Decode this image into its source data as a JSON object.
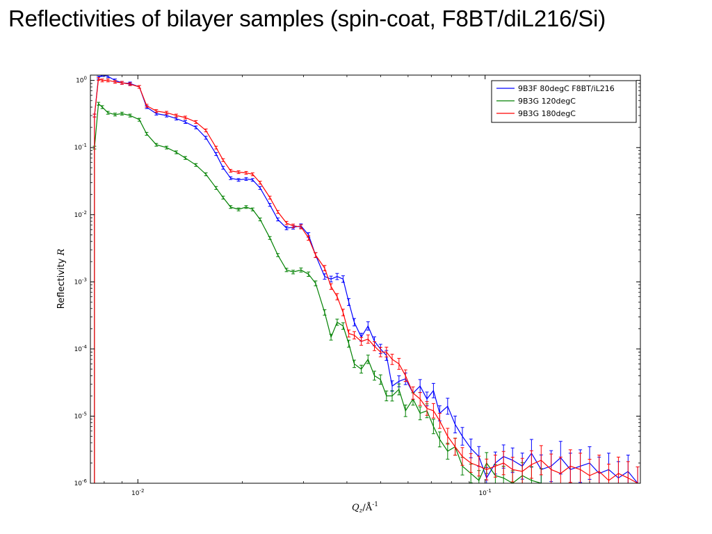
{
  "slide": {
    "title": "Reflectivities of bilayer samples  (spin-coat, F8BT/diL216/Si)"
  },
  "chart_data": {
    "type": "line",
    "xscale": "log",
    "yscale": "log",
    "xlim": [
      0.0073,
      0.28
    ],
    "ylim": [
      1e-06,
      1.2
    ],
    "grid": false,
    "legend_position": "top-right",
    "xlabel": "Q_z/Å^-1",
    "ylabel": "Reflectivity R",
    "x_ticks": [
      {
        "value": 0.01,
        "base": "10",
        "exp": "-2"
      },
      {
        "value": 0.1,
        "base": "10",
        "exp": "-1"
      }
    ],
    "y_ticks": [
      {
        "value": 1,
        "base": "10",
        "exp": "0"
      },
      {
        "value": 0.1,
        "base": "10",
        "exp": "-1"
      },
      {
        "value": 0.01,
        "base": "10",
        "exp": "-2"
      },
      {
        "value": 0.001,
        "base": "10",
        "exp": "-3"
      },
      {
        "value": 0.0001,
        "base": "10",
        "exp": "-4"
      },
      {
        "value": 1e-05,
        "base": "10",
        "exp": "-5"
      },
      {
        "value": 1e-06,
        "base": "10",
        "exp": "-6"
      }
    ],
    "series": [
      {
        "name": "9B3F  80degC F8BT/iL216",
        "color": "#0000ff",
        "x": [
          0.0075,
          0.0077,
          0.0079,
          0.0082,
          0.0086,
          0.009,
          0.0095,
          0.0101,
          0.0106,
          0.0113,
          0.0121,
          0.0129,
          0.0137,
          0.0147,
          0.0157,
          0.0168,
          0.0176,
          0.0185,
          0.0195,
          0.0205,
          0.0214,
          0.0225,
          0.024,
          0.0253,
          0.0268,
          0.028,
          0.0295,
          0.031,
          0.0325,
          0.0345,
          0.036,
          0.0375,
          0.039,
          0.0405,
          0.042,
          0.044,
          0.046,
          0.048,
          0.05,
          0.052,
          0.054,
          0.0565,
          0.059,
          0.062,
          0.065,
          0.068,
          0.071,
          0.074,
          0.078,
          0.082,
          0.086,
          0.091,
          0.096,
          0.101,
          0.107,
          0.113,
          0.12,
          0.128,
          0.136,
          0.145,
          0.155,
          0.165,
          0.176,
          0.188,
          0.2,
          0.213,
          0.227,
          0.242,
          0.258,
          0.275
        ],
        "y": [
          0.3,
          1.1,
          1.2,
          1.15,
          1.0,
          0.92,
          0.9,
          0.8,
          0.4,
          0.32,
          0.3,
          0.27,
          0.24,
          0.2,
          0.14,
          0.08,
          0.05,
          0.035,
          0.033,
          0.034,
          0.033,
          0.025,
          0.014,
          0.0085,
          0.0063,
          0.0065,
          0.0068,
          0.005,
          0.0025,
          0.0012,
          0.0011,
          0.0012,
          0.0011,
          0.0005,
          0.00025,
          0.00015,
          0.00022,
          0.00013,
          0.0001,
          8e-05,
          2.8e-05,
          3.3e-05,
          3.6e-05,
          2.2e-05,
          2.8e-05,
          1.8e-05,
          2.4e-05,
          1.1e-05,
          1.4e-05,
          7.5e-06,
          5e-06,
          3.3e-06,
          2.5e-06,
          1.2e-06,
          2e-06,
          2.5e-06,
          2.2e-06,
          1.8e-06,
          2.8e-06,
          1.6e-06,
          1.8e-06,
          2.4e-06,
          1.6e-06,
          1.8e-06,
          2e-06,
          1.4e-06,
          1.6e-06,
          1.2e-06,
          1.5e-06,
          1e-06
        ]
      },
      {
        "name": "9B3G 120degC",
        "color": "#008000",
        "x": [
          0.0075,
          0.0077,
          0.0079,
          0.0082,
          0.0086,
          0.009,
          0.0095,
          0.0101,
          0.0106,
          0.0113,
          0.0121,
          0.0129,
          0.0137,
          0.0147,
          0.0157,
          0.0168,
          0.0176,
          0.0185,
          0.0195,
          0.0205,
          0.0214,
          0.0225,
          0.024,
          0.0253,
          0.0268,
          0.028,
          0.0295,
          0.031,
          0.0325,
          0.0345,
          0.036,
          0.0375,
          0.039,
          0.0405,
          0.042,
          0.044,
          0.046,
          0.048,
          0.05,
          0.052,
          0.054,
          0.0565,
          0.059,
          0.062,
          0.065,
          0.068,
          0.071,
          0.074,
          0.078,
          0.082,
          0.086,
          0.091,
          0.096,
          0.101,
          0.107,
          0.113,
          0.12,
          0.128,
          0.136,
          0.145
        ],
        "y": [
          0.1,
          0.45,
          0.4,
          0.33,
          0.31,
          0.32,
          0.3,
          0.26,
          0.16,
          0.11,
          0.1,
          0.085,
          0.07,
          0.055,
          0.04,
          0.025,
          0.018,
          0.013,
          0.012,
          0.013,
          0.012,
          0.0085,
          0.0045,
          0.0025,
          0.0015,
          0.0014,
          0.0015,
          0.0013,
          0.00095,
          0.00035,
          0.00015,
          0.00025,
          0.00022,
          0.00012,
          6e-05,
          5e-05,
          7e-05,
          4e-05,
          3.5e-05,
          2e-05,
          2e-05,
          2.5e-05,
          1.2e-05,
          1.8e-05,
          1.1e-05,
          1.2e-05,
          7e-06,
          4.5e-06,
          3e-06,
          3.5e-06,
          1.8e-06,
          1.4e-06,
          1.1e-06,
          2e-06,
          1.3e-06,
          1.2e-06,
          1e-06,
          1.3e-06,
          1.1e-06,
          1e-06
        ]
      },
      {
        "name": "9B3G 180degC",
        "color": "#ff0000",
        "x": [
          0.0075,
          0.0077,
          0.0079,
          0.0082,
          0.0086,
          0.009,
          0.0095,
          0.0101,
          0.0106,
          0.0113,
          0.0121,
          0.0129,
          0.0137,
          0.0147,
          0.0157,
          0.0168,
          0.0176,
          0.0185,
          0.0195,
          0.0205,
          0.0214,
          0.0225,
          0.024,
          0.0253,
          0.0268,
          0.028,
          0.0295,
          0.031,
          0.0325,
          0.0345,
          0.036,
          0.0375,
          0.039,
          0.0405,
          0.042,
          0.044,
          0.046,
          0.048,
          0.05,
          0.052,
          0.054,
          0.0565,
          0.059,
          0.062,
          0.065,
          0.068,
          0.071,
          0.074,
          0.078,
          0.082,
          0.086,
          0.091,
          0.096,
          0.101,
          0.107,
          0.113,
          0.12,
          0.128,
          0.136,
          0.145,
          0.155,
          0.165,
          0.176,
          0.188,
          0.2,
          0.213,
          0.227,
          0.242,
          0.258,
          0.275
        ],
        "y": [
          0.3,
          1.05,
          1.0,
          1.0,
          0.95,
          0.92,
          0.88,
          0.8,
          0.42,
          0.35,
          0.33,
          0.3,
          0.28,
          0.24,
          0.18,
          0.1,
          0.065,
          0.045,
          0.043,
          0.042,
          0.04,
          0.03,
          0.018,
          0.011,
          0.0075,
          0.0068,
          0.0066,
          0.0045,
          0.0025,
          0.0016,
          0.00085,
          0.0006,
          0.00035,
          0.00017,
          0.00016,
          0.00013,
          0.00014,
          0.00011,
          9e-05,
          9e-05,
          7e-05,
          6e-05,
          4e-05,
          2.2e-05,
          1.8e-05,
          1.3e-05,
          1.2e-05,
          8.5e-06,
          5e-06,
          3.5e-06,
          2.5e-06,
          2e-06,
          1.8e-06,
          1.6e-06,
          1.8e-06,
          2e-06,
          1.6e-06,
          1.5e-06,
          1.9e-06,
          2.2e-06,
          1.6e-06,
          1.4e-06,
          1.8e-06,
          1.6e-06,
          1.3e-06,
          1.5e-06,
          1.1e-06,
          1.4e-06,
          1.2e-06,
          1e-06
        ]
      }
    ]
  }
}
